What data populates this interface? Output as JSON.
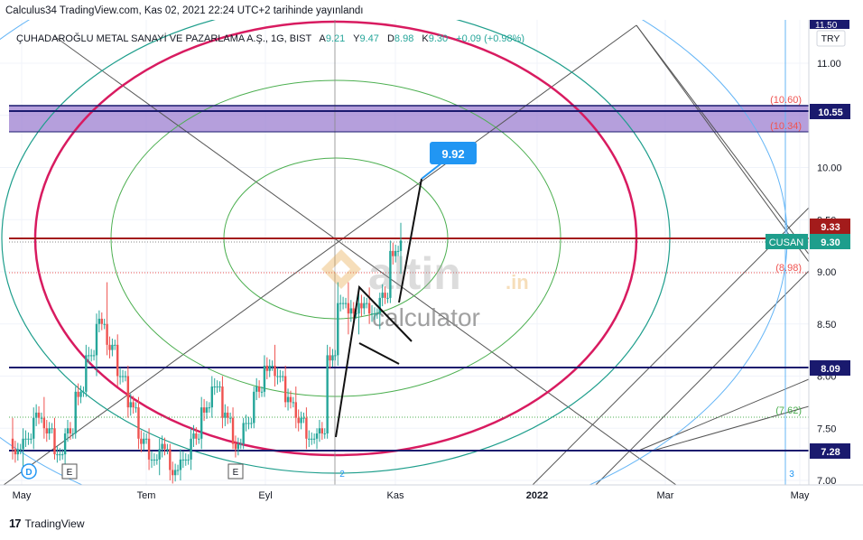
{
  "publication": "Calculus34 TradingView.com, Kas 02, 2021 22:24 UTC+2 tarihinde yayınlandı",
  "symbol_line": {
    "name": "ÇUHADAROĞLU METAL SANAYİ VE PAZARLAMA A.Ş., 1G, BIST",
    "open_label": "A",
    "open": "9.21",
    "high_label": "Y",
    "high": "9.47",
    "low_label": "D",
    "low": "8.98",
    "close_label": "K",
    "close": "9.30",
    "change": "+0.09 (+0.98%)"
  },
  "currency_button": "TRY",
  "watermark": {
    "brand": "altin",
    "suffix": ".in",
    "tagline": "calculator"
  },
  "footer": {
    "brand": "TradingView"
  },
  "colors": {
    "up": "#26a69a",
    "down": "#ef5350",
    "navy": "#1a1a6e",
    "darkred": "#a31b1b",
    "pink": "#d81b60",
    "teal": "#1e9e8c",
    "green": "#4caf50",
    "lightblue": "#64b5f6",
    "purple_zone": "#9c7fd0",
    "callout": "#2196f3"
  },
  "chart_data": {
    "type": "candlestick",
    "title": "ÇUHADAROĞLU METAL SANAYİ VE PAZARLAMA A.Ş., 1G, BIST",
    "x_ticks": [
      "May",
      "Tem",
      "Eyl",
      "Kas",
      "2022",
      "Mar",
      "May"
    ],
    "y_ticks": [
      "11.00",
      "10.50",
      "10.00",
      "9.50",
      "9.00",
      "8.50",
      "8.00",
      "7.50",
      "7.00"
    ],
    "ylim": [
      7.0,
      11.35
    ],
    "partial_top_label": "11.50",
    "ohlc_sample": [
      [
        7.4,
        7.6,
        7.2,
        7.3
      ],
      [
        7.3,
        7.5,
        7.1,
        7.4
      ],
      [
        7.4,
        7.7,
        7.3,
        7.6
      ],
      [
        7.6,
        7.8,
        7.4,
        7.5
      ],
      [
        7.5,
        7.6,
        7.2,
        7.25
      ],
      [
        7.25,
        7.5,
        7.15,
        7.45
      ],
      [
        7.45,
        7.9,
        7.4,
        7.85
      ],
      [
        7.85,
        8.3,
        7.8,
        8.2
      ],
      [
        8.2,
        8.6,
        8.0,
        8.5
      ],
      [
        8.5,
        8.9,
        8.2,
        8.3
      ],
      [
        8.3,
        8.4,
        7.9,
        8.0
      ],
      [
        8.0,
        8.1,
        7.6,
        7.7
      ],
      [
        7.7,
        7.8,
        7.3,
        7.4
      ],
      [
        7.4,
        7.5,
        7.1,
        7.2
      ],
      [
        7.2,
        7.4,
        7.05,
        7.3
      ],
      [
        7.3,
        7.35,
        7.0,
        7.1
      ],
      [
        7.1,
        7.3,
        7.0,
        7.2
      ],
      [
        7.2,
        7.5,
        7.1,
        7.4
      ],
      [
        7.4,
        7.8,
        7.3,
        7.7
      ],
      [
        7.7,
        8.0,
        7.6,
        7.9
      ],
      [
        7.9,
        8.0,
        7.5,
        7.6
      ],
      [
        7.6,
        7.7,
        7.3,
        7.35
      ],
      [
        7.35,
        7.6,
        7.3,
        7.55
      ],
      [
        7.55,
        7.9,
        7.5,
        7.85
      ],
      [
        7.85,
        8.2,
        7.8,
        8.1
      ],
      [
        8.1,
        8.3,
        7.9,
        8.0
      ],
      [
        8.0,
        8.1,
        7.7,
        7.75
      ],
      [
        7.75,
        7.9,
        7.5,
        7.6
      ],
      [
        7.6,
        7.7,
        7.3,
        7.4
      ],
      [
        7.4,
        7.5,
        7.3,
        7.45
      ],
      [
        7.45,
        8.3,
        7.4,
        8.2
      ],
      [
        8.2,
        8.9,
        8.1,
        8.7
      ],
      [
        8.7,
        8.9,
        8.4,
        8.6
      ],
      [
        8.6,
        8.8,
        8.4,
        8.7
      ],
      [
        8.7,
        8.85,
        8.5,
        8.6
      ],
      [
        8.6,
        8.8,
        8.45,
        8.75
      ],
      [
        8.75,
        9.3,
        8.7,
        9.2
      ],
      [
        9.2,
        9.47,
        8.98,
        9.3
      ]
    ],
    "horizontal_levels": [
      {
        "label": "10.55",
        "style": "navy"
      },
      {
        "label": "9.33",
        "style": "darkred"
      },
      {
        "label": "9.30",
        "name": "CUSAN",
        "style": "teal"
      },
      {
        "label": "8.09",
        "style": "navy"
      },
      {
        "label": "7.28",
        "style": "navy"
      }
    ],
    "zone": {
      "from": "10.34",
      "to": "10.60"
    },
    "annotations": [
      {
        "text": "9.92",
        "kind": "callout"
      },
      {
        "text": "(10.60)",
        "kind": "label"
      },
      {
        "text": "(10.34)",
        "kind": "label"
      },
      {
        "text": "(8.98)",
        "kind": "label"
      },
      {
        "text": "(7.62)",
        "kind": "label"
      }
    ],
    "event_markers": [
      "D",
      "E",
      "E"
    ],
    "cycle_labels": [
      "2",
      "3"
    ],
    "grid": true,
    "legend_position": "right"
  }
}
